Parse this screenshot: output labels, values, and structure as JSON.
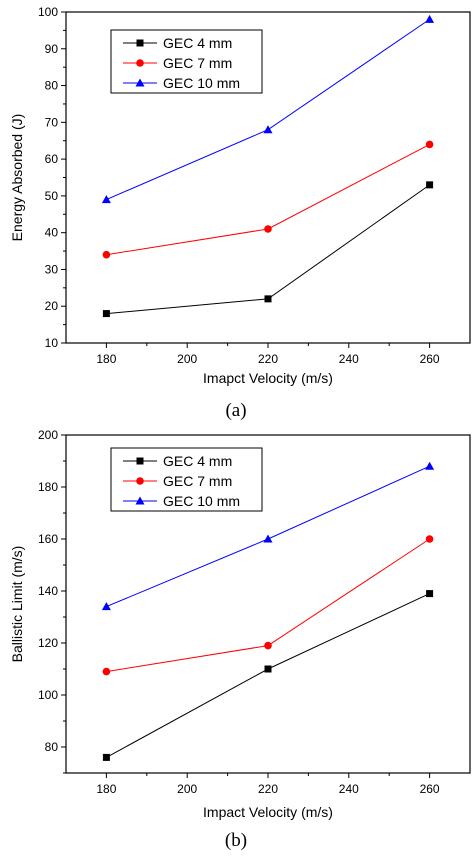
{
  "chart_data": [
    {
      "type": "line",
      "caption": "(a)",
      "xlabel": "Imapct Velocity (m/s)",
      "ylabel": "Energy Absorbed (J)",
      "x": [
        180,
        220,
        260
      ],
      "xlim": [
        170,
        270
      ],
      "ylim": [
        10,
        100
      ],
      "xticks": [
        180,
        200,
        220,
        240,
        260
      ],
      "yticks": [
        10,
        20,
        30,
        40,
        50,
        60,
        70,
        80,
        90,
        100
      ],
      "legend_position": "top-left",
      "series": [
        {
          "name": "GEC 4 mm",
          "values": [
            18,
            22,
            53
          ],
          "color": "#000000",
          "marker": "square"
        },
        {
          "name": "GEC 7 mm",
          "values": [
            34,
            41,
            64
          ],
          "color": "#ff0000",
          "marker": "circle"
        },
        {
          "name": "GEC 10 mm",
          "values": [
            49,
            68,
            98
          ],
          "color": "#0000ff",
          "marker": "triangle"
        }
      ]
    },
    {
      "type": "line",
      "caption": "(b)",
      "xlabel": "Impact Velocity (m/s)",
      "ylabel": "Ballistic Limit (m/s)",
      "x": [
        180,
        220,
        260
      ],
      "xlim": [
        170,
        270
      ],
      "ylim": [
        70,
        200
      ],
      "xticks": [
        180,
        200,
        220,
        240,
        260
      ],
      "yticks": [
        80,
        100,
        120,
        140,
        160,
        180,
        200
      ],
      "legend_position": "top-left",
      "series": [
        {
          "name": "GEC 4 mm",
          "values": [
            76,
            110,
            139
          ],
          "color": "#000000",
          "marker": "square"
        },
        {
          "name": "GEC 7 mm",
          "values": [
            109,
            119,
            160
          ],
          "color": "#ff0000",
          "marker": "circle"
        },
        {
          "name": "GEC 10 mm",
          "values": [
            134,
            160,
            188
          ],
          "color": "#0000ff",
          "marker": "triangle"
        }
      ]
    }
  ]
}
